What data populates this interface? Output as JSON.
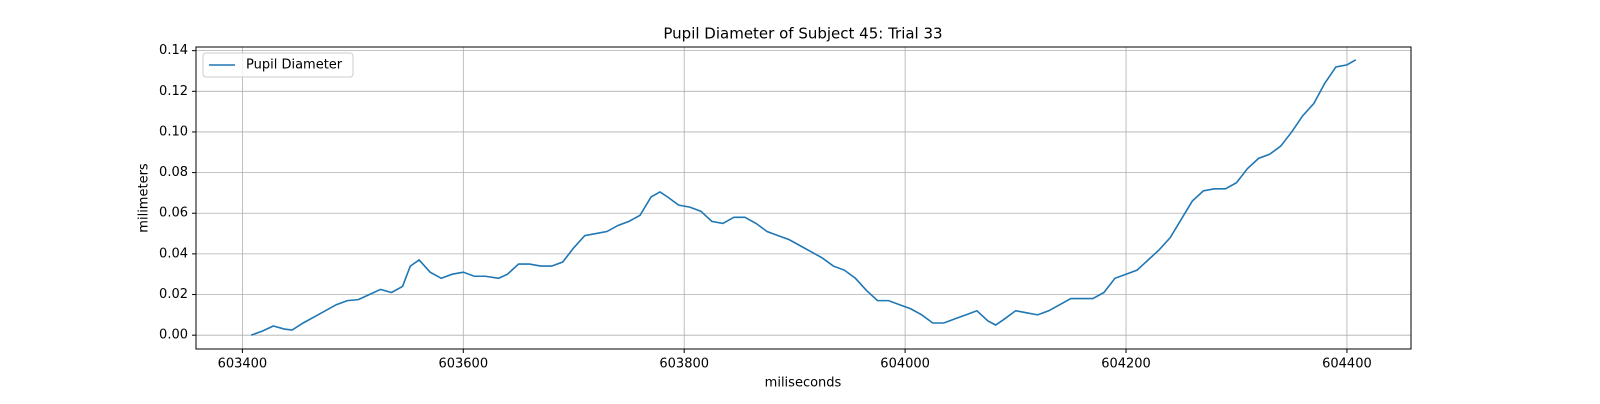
{
  "chart_data": {
    "type": "line",
    "title": "Pupil Diameter of Subject 45: Trial 33",
    "x_label": "miliseconds",
    "y_label": "milimeters",
    "x": [
      603408,
      603418,
      603428,
      603438,
      603445,
      603455,
      603465,
      603475,
      603485,
      603495,
      603505,
      603515,
      603525,
      603535,
      603545,
      603552,
      603560,
      603570,
      603580,
      603590,
      603600,
      603610,
      603620,
      603632,
      603640,
      603650,
      603660,
      603670,
      603680,
      603690,
      603700,
      603710,
      603720,
      603730,
      603740,
      603750,
      603760,
      603770,
      603778,
      603785,
      603795,
      603805,
      603815,
      603825,
      603835,
      603845,
      603855,
      603865,
      603875,
      603885,
      603895,
      603905,
      603915,
      603925,
      603935,
      603945,
      603955,
      603965,
      603975,
      603985,
      603995,
      604005,
      604015,
      604025,
      604035,
      604045,
      604055,
      604065,
      604075,
      604082,
      604090,
      604100,
      604110,
      604120,
      604130,
      604140,
      604150,
      604160,
      604170,
      604180,
      604190,
      604200,
      604210,
      604220,
      604230,
      604240,
      604250,
      604260,
      604270,
      604280,
      604290,
      604300,
      604310,
      604320,
      604330,
      604340,
      604350,
      604360,
      604370,
      604380,
      604390,
      604400,
      604408
    ],
    "series": [
      {
        "name": "Pupil Diameter",
        "color": "#1f77b4",
        "values": [
          0.0,
          0.002,
          0.0045,
          0.003,
          0.0025,
          0.006,
          0.009,
          0.012,
          0.015,
          0.017,
          0.0175,
          0.02,
          0.0225,
          0.021,
          0.024,
          0.034,
          0.037,
          0.031,
          0.028,
          0.03,
          0.031,
          0.029,
          0.029,
          0.028,
          0.03,
          0.035,
          0.035,
          0.034,
          0.034,
          0.036,
          0.043,
          0.049,
          0.05,
          0.051,
          0.054,
          0.056,
          0.059,
          0.068,
          0.0705,
          0.068,
          0.064,
          0.063,
          0.061,
          0.056,
          0.055,
          0.058,
          0.058,
          0.055,
          0.051,
          0.049,
          0.047,
          0.044,
          0.041,
          0.038,
          0.034,
          0.032,
          0.028,
          0.022,
          0.017,
          0.017,
          0.015,
          0.013,
          0.01,
          0.006,
          0.006,
          0.008,
          0.01,
          0.012,
          0.007,
          0.005,
          0.008,
          0.012,
          0.011,
          0.01,
          0.012,
          0.015,
          0.018,
          0.018,
          0.018,
          0.021,
          0.028,
          0.03,
          0.032,
          0.037,
          0.042,
          0.048,
          0.057,
          0.066,
          0.071,
          0.072,
          0.072,
          0.075,
          0.082,
          0.087,
          0.089,
          0.093,
          0.1,
          0.108,
          0.114,
          0.124,
          0.132,
          0.133,
          0.1355
        ]
      }
    ],
    "xlim": [
      603358,
      604458
    ],
    "ylim": [
      -0.0068,
      0.1418
    ],
    "xticks": [
      603400,
      603600,
      603800,
      604000,
      604200,
      604400
    ],
    "yticks": [
      {
        "value": 0,
        "label": "0.00"
      },
      {
        "value": 0.02,
        "label": "0.02"
      },
      {
        "value": 0.04,
        "label": "0.04"
      },
      {
        "value": 0.06,
        "label": "0.06"
      },
      {
        "value": 0.08,
        "label": "0.08"
      },
      {
        "value": 0.1,
        "label": "0.10"
      },
      {
        "value": 0.12,
        "label": "0.12"
      },
      {
        "value": 0.14,
        "label": "0.14"
      }
    ],
    "grid": true,
    "legend": "upper left"
  }
}
